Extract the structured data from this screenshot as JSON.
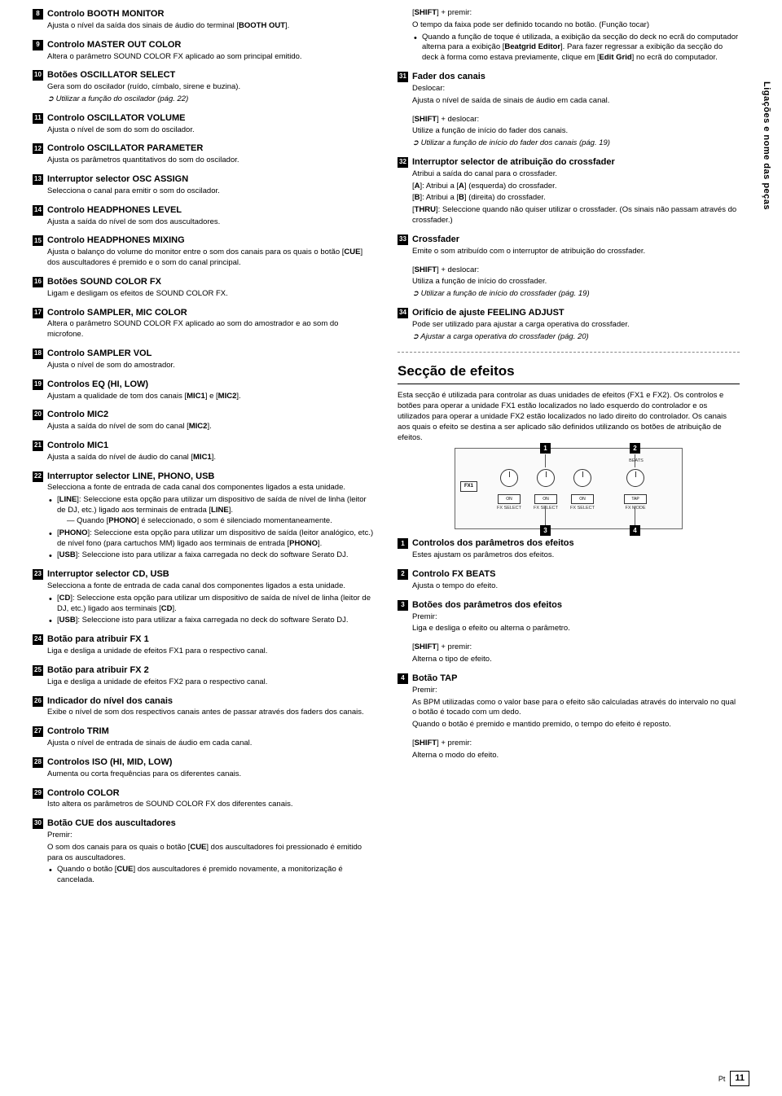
{
  "sideTab": "Ligações e nome das peças",
  "footer": {
    "lang": "Pt",
    "page": "11"
  },
  "left": [
    {
      "n": "8",
      "t": "Controlo BOOTH MONITOR",
      "body": [
        "Ajusta o nível da saída dos sinais de áudio do terminal [<b>BOOTH OUT</b>]."
      ]
    },
    {
      "n": "9",
      "t": "Controlo MASTER OUT COLOR",
      "body": [
        "Altera o parâmetro SOUND COLOR FX aplicado ao som principal emitido."
      ]
    },
    {
      "n": "10",
      "t": "Botões OSCILLATOR SELECT",
      "body": [
        "Gera som do oscilador (ruído, címbalo, sirene e buzina)."
      ],
      "ref": "Utilizar a função do oscilador (pág. 22)"
    },
    {
      "n": "11",
      "t": "Controlo OSCILLATOR VOLUME",
      "body": [
        "Ajusta o nível de som do som do oscilador."
      ]
    },
    {
      "n": "12",
      "t": "Controlo OSCILLATOR PARAMETER",
      "body": [
        "Ajusta os parâmetros quantitativos do som do oscilador."
      ]
    },
    {
      "n": "13",
      "t": "Interruptor selector OSC ASSIGN",
      "body": [
        "Selecciona o canal para emitir o som do oscilador."
      ]
    },
    {
      "n": "14",
      "t": "Controlo HEADPHONES LEVEL",
      "body": [
        "Ajusta a saída do nível de som dos auscultadores."
      ]
    },
    {
      "n": "15",
      "t": "Controlo HEADPHONES MIXING",
      "body": [
        "Ajusta o balanço do volume do monitor entre o som dos canais para os quais o botão [<b>CUE</b>] dos auscultadores é premido e o som do canal principal."
      ]
    },
    {
      "n": "16",
      "t": "Botões SOUND COLOR FX",
      "body": [
        "Ligam e desligam os efeitos de SOUND COLOR FX."
      ]
    },
    {
      "n": "17",
      "t": "Controlo SAMPLER, MIC COLOR",
      "body": [
        "Altera o parâmetro SOUND COLOR FX aplicado ao som do amostrador e ao som do microfone."
      ]
    },
    {
      "n": "18",
      "t": "Controlo SAMPLER VOL",
      "body": [
        "Ajusta o nível de som do amostrador."
      ]
    },
    {
      "n": "19",
      "t": "Controlos EQ (HI, LOW)",
      "body": [
        "Ajustam a qualidade de tom dos canais [<b>MIC1</b>] e [<b>MIC2</b>]."
      ]
    },
    {
      "n": "20",
      "t": "Controlo MIC2",
      "body": [
        "Ajusta a saída do nível de som do canal [<b>MIC2</b>]."
      ]
    },
    {
      "n": "21",
      "t": "Controlo MIC1",
      "body": [
        "Ajusta a saída do nível de áudio do canal [<b>MIC1</b>]."
      ]
    },
    {
      "n": "22",
      "t": "Interruptor selector LINE, PHONO, USB",
      "body": [
        "Selecciona a fonte de entrada de cada canal dos componentes ligados a esta unidade."
      ],
      "bullets": [
        "[<b>LINE</b>]: Seleccione esta opção para utilizar um dispositivo de saída de nível de linha (leitor de DJ, etc.) ligado aos terminais de entrada [<b>LINE</b>].<div class='sub'>Quando [<b>PHONO</b>] é seleccionado, o som é silenciado momentaneamente.</div>",
        "[<b>PHONO</b>]: Seleccione esta opção para utilizar um dispositivo de saída (leitor analógico, etc.) de nível fono (para cartuchos MM) ligado aos terminais de entrada [<b>PHONO</b>].",
        "[<b>USB</b>]: Seleccione isto para utilizar a faixa carregada no deck do software Serato DJ."
      ]
    },
    {
      "n": "23",
      "t": "Interruptor selector CD, USB",
      "body": [
        "Selecciona a fonte de entrada de cada canal dos componentes ligados a esta unidade."
      ],
      "bullets": [
        "[<b>CD</b>]: Seleccione esta opção para utilizar um dispositivo de saída de nível de linha (leitor de DJ, etc.) ligado aos terminais [<b>CD</b>].",
        "[<b>USB</b>]: Seleccione isto para utilizar a faixa carregada no deck do software Serato DJ."
      ]
    },
    {
      "n": "24",
      "t": "Botão para atribuir FX 1",
      "body": [
        "Liga e desliga a unidade de efeitos FX1 para o respectivo canal."
      ]
    },
    {
      "n": "25",
      "t": "Botão para atribuir FX 2",
      "body": [
        "Liga e desliga a unidade de efeitos FX2 para o respectivo canal."
      ]
    },
    {
      "n": "26",
      "t": "Indicador do nível dos canais",
      "body": [
        "Exibe o nível de som dos respectivos canais antes de passar através dos faders dos canais."
      ]
    },
    {
      "n": "27",
      "t": "Controlo TRIM",
      "body": [
        "Ajusta o nível de entrada de sinais de áudio em cada canal."
      ]
    },
    {
      "n": "28",
      "t": "Controlos ISO (HI, MID, LOW)",
      "body": [
        "Aumenta ou corta frequências para os diferentes canais."
      ]
    },
    {
      "n": "29",
      "t": "Controlo COLOR",
      "body": [
        "Isto altera os parâmetros de SOUND COLOR FX dos diferentes canais."
      ]
    },
    {
      "n": "30",
      "t": "Botão CUE dos auscultadores",
      "body": [
        "Premir:",
        "O som dos canais para os quais o botão [<b>CUE</b>] dos auscultadores foi pressionado é emitido para os auscultadores."
      ],
      "bullets": [
        "Quando o botão [<b>CUE</b>] dos auscultadores é premido novamente, a monitorização é cancelada."
      ]
    }
  ],
  "rightTop": [
    {
      "pre": [
        "[<b>SHIFT</b>] + premir:",
        "O tempo da faixa pode ser definido tocando no botão. (Função tocar)"
      ],
      "bullets": [
        "Quando a função de toque é utilizada, a exibição da secção do deck no ecrã do computador alterna para a exibição [<b>Beatgrid Editor</b>]. Para fazer regressar a exibição da secção do deck à forma como estava previamente, clique em [<b>Edit Grid</b>] no ecrã do computador."
      ]
    },
    {
      "n": "31",
      "t": "Fader dos canais",
      "body": [
        "Deslocar:",
        "Ajusta o nível de saída de sinais de áudio em cada canal.",
        "",
        "[<b>SHIFT</b>] + deslocar:",
        "Utilize a função de início do fader dos canais."
      ],
      "ref": "Utilizar a função de início do fader dos canais (pág. 19)"
    },
    {
      "n": "32",
      "t": "Interruptor selector de atribuição do crossfader",
      "body": [
        "Atribui a saída do canal para o crossfader.",
        "[<b>A</b>]: Atribui a [<b>A</b>] (esquerda) do crossfader.",
        "[<b>B</b>]: Atribui a [<b>B</b>] (direita) do crossfader.",
        "[<b>THRU</b>]: Seleccione quando não quiser utilizar o crossfader. (Os sinais não passam através do crossfader.)"
      ]
    },
    {
      "n": "33",
      "t": "Crossfader",
      "body": [
        "Emite o som atribuído com o interruptor de atribuição do crossfader.",
        "",
        "[<b>SHIFT</b>] + deslocar:",
        "Utiliza a função de início do crossfader."
      ],
      "ref": "Utilizar a função de início do crossfader (pág. 19)"
    },
    {
      "n": "34",
      "t": "Orifício de ajuste FEELING ADJUST",
      "body": [
        "Pode ser utilizado para ajustar a carga operativa do crossfader."
      ],
      "ref": "Ajustar a carga operativa do crossfader (pág. 20)"
    }
  ],
  "effects": {
    "title": "Secção de efeitos",
    "intro": "Esta secção é utilizada para controlar as duas unidades de efeitos (FX1 e FX2). Os controlos e botões para operar a unidade FX1 estão localizados no lado esquerdo do controlador e os utilizados para operar a unidade FX2 estão localizados no lado direito do controlador. Os canais aos quais o efeito se destina a ser aplicado são definidos utilizando os botões de atribuição de efeitos.",
    "diagram": {
      "callouts": [
        "1",
        "2",
        "3",
        "4"
      ],
      "fx1": "FX1",
      "btns": [
        "ON",
        "ON",
        "ON",
        "TAP"
      ],
      "btnSub": [
        "FX SELECT",
        "FX SELECT",
        "FX SELECT",
        "FX MODE"
      ],
      "beats": "BEATS"
    },
    "items": [
      {
        "n": "1",
        "t": "Controlos dos parâmetros dos efeitos",
        "body": [
          "Estes ajustam os parâmetros dos efeitos."
        ]
      },
      {
        "n": "2",
        "t": "Controlo FX BEATS",
        "body": [
          "Ajusta o tempo do efeito."
        ]
      },
      {
        "n": "3",
        "t": "Botões dos parâmetros dos efeitos",
        "body": [
          "Premir:",
          "Liga e desliga o efeito ou alterna o parâmetro.",
          "",
          "[<b>SHIFT</b>] + premir:",
          "Alterna o tipo de efeito."
        ]
      },
      {
        "n": "4",
        "t": "Botão TAP",
        "body": [
          "Premir:",
          "As BPM utilizadas como o valor base para o efeito são calculadas através do intervalo no qual o botão é tocado com um dedo.",
          "Quando o botão é premido e mantido premido, o tempo do efeito é reposto.",
          "",
          "[<b>SHIFT</b>] + premir:",
          "Alterna o modo do efeito."
        ]
      }
    ]
  }
}
